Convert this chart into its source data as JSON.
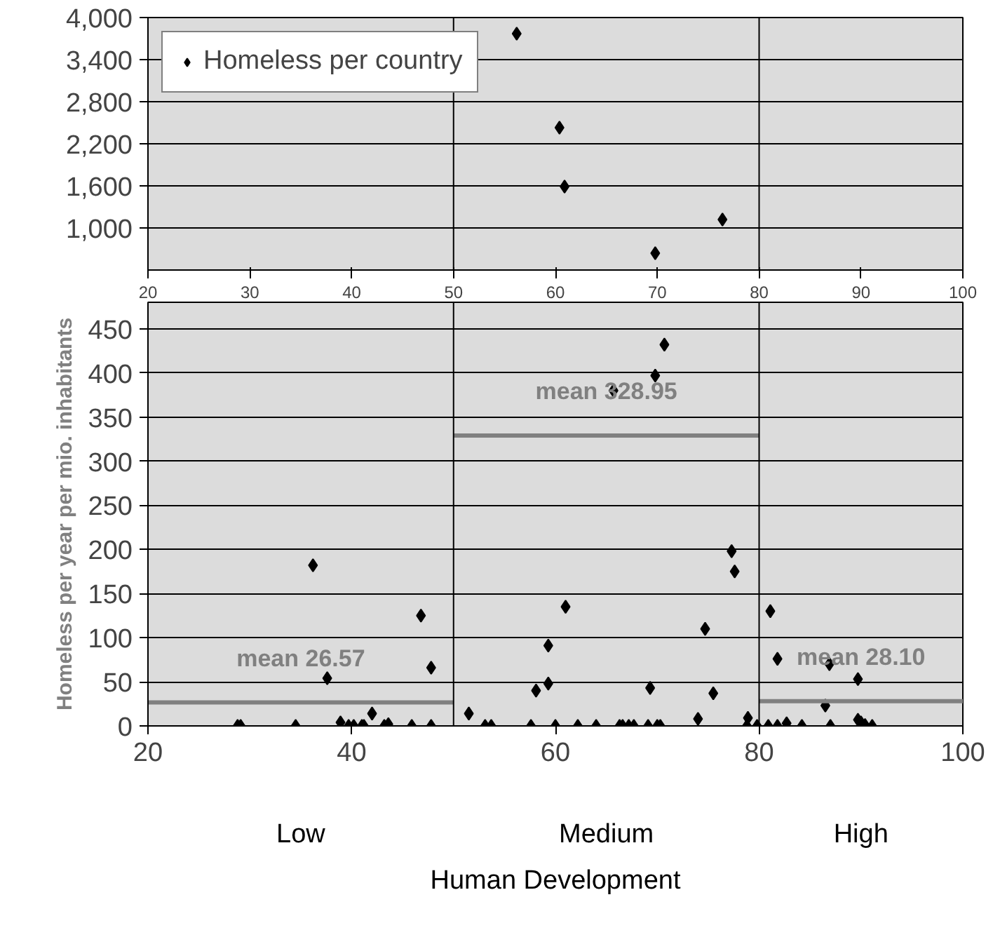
{
  "chart_data": [
    {
      "type": "scatter",
      "xlim": [
        20,
        100
      ],
      "xticks": [
        20,
        30,
        40,
        50,
        60,
        70,
        80,
        90,
        100
      ],
      "ylim": [
        400,
        4000
      ],
      "yticks": [
        {
          "value": 1000,
          "label": "1,000"
        },
        {
          "value": 1600,
          "label": "1,600"
        },
        {
          "value": 2200,
          "label": "2,200"
        },
        {
          "value": 2800,
          "label": "2,800"
        },
        {
          "value": 3400,
          "label": "3,400"
        },
        {
          "value": 4000,
          "label": "4,000"
        }
      ],
      "grid": "y",
      "legend": "top left",
      "marker": "diamond",
      "ref_lines": [
        {
          "axis": "x",
          "value": 50,
          "color": "#000000"
        },
        {
          "axis": "x",
          "value": 80,
          "color": "#000000"
        }
      ],
      "series": [
        {
          "name": "Homeless per country",
          "color": "#000000",
          "x": [
            56.2,
            60.4,
            60.9,
            76.4,
            69.8
          ],
          "values": [
            3770,
            2430,
            1590,
            1120,
            640
          ]
        }
      ]
    },
    {
      "type": "scatter",
      "xlabel": "Human Development",
      "ylabel": "Homeless per year per mio. inhabitants",
      "xlim": [
        20,
        100
      ],
      "xticks": [
        20,
        40,
        60,
        80,
        100
      ],
      "ylim": [
        0,
        480
      ],
      "yticks": [
        0,
        50,
        100,
        150,
        200,
        250,
        300,
        350,
        400,
        450
      ],
      "grid": "y",
      "ref_lines": [
        {
          "axis": "x",
          "value": 50,
          "color": "#000000"
        },
        {
          "axis": "x",
          "value": 80,
          "color": "#000000"
        }
      ],
      "series": [
        {
          "color": "#000000",
          "marker": "diamond",
          "x": [
            28.8,
            29.1,
            34.5,
            36.2,
            37.6,
            38.9,
            39.7,
            40.2,
            41,
            41.2,
            42,
            43.2,
            43.6,
            45.9,
            46.8,
            47.8,
            47.8,
            51.5,
            53.1,
            53.7,
            70.7,
            69.8,
            65.7,
            77.3,
            77.6,
            61,
            81.1,
            74.7,
            59.3,
            81.8,
            86.9,
            89.7,
            59.3,
            58.1,
            69.3,
            75.5,
            86.5,
            74,
            78.9,
            89.7,
            90,
            90.4,
            57.6,
            60,
            62.2,
            64,
            66.3,
            66.6,
            67.2,
            67.7,
            69.1,
            70,
            70.3,
            78.8,
            79.8,
            80.9,
            81.8,
            82.7,
            84.2,
            87,
            91.1
          ],
          "values": [
            0,
            0,
            0,
            182,
            54,
            4,
            0,
            0,
            0,
            0,
            14,
            0,
            2,
            0,
            125,
            66,
            0,
            14,
            0,
            0,
            432,
            397,
            380,
            198,
            175,
            135,
            130,
            110,
            91,
            76,
            70,
            53,
            48,
            40,
            43,
            37,
            23,
            8,
            9,
            7,
            4,
            1,
            0,
            0,
            0,
            0,
            0,
            0,
            0,
            0,
            0,
            0,
            0,
            0,
            0,
            0,
            0,
            3,
            0,
            0,
            0
          ]
        },
        {
          "type": "line",
          "name": "mean 26.57",
          "color": "#808080",
          "x": [
            20,
            50
          ],
          "values": [
            26.57,
            26.57
          ]
        },
        {
          "type": "line",
          "name": "mean 328.95",
          "color": "#808080",
          "x": [
            50,
            80
          ],
          "values": [
            328.95,
            328.95
          ]
        },
        {
          "type": "line",
          "name": "mean 28.10",
          "color": "#808080",
          "x": [
            80,
            100
          ],
          "values": [
            28.1,
            28.1
          ]
        }
      ],
      "annotations": [
        "Low",
        "Medium",
        "High"
      ]
    }
  ]
}
